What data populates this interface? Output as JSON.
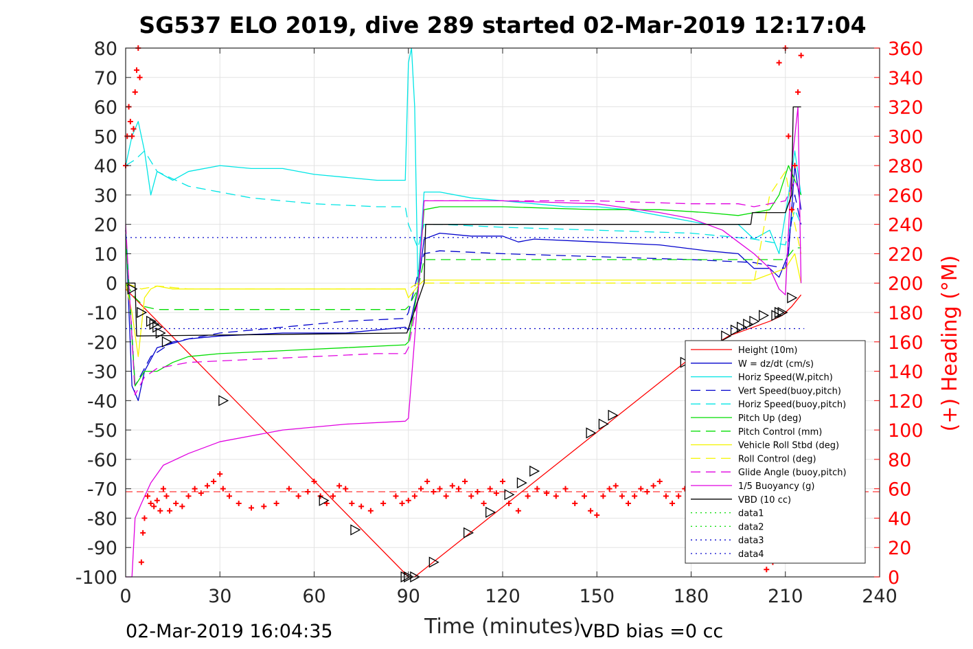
{
  "chart_data": {
    "type": "line",
    "title": "SG537 ELO 2019, dive 289 started 02-Mar-2019 12:17:04",
    "xlabel": "Time (minutes)",
    "ylabel": "",
    "y2label": "(+) Heading (°M)",
    "xlim": [
      0,
      240
    ],
    "ylim": [
      -100,
      80
    ],
    "y2lim": [
      0,
      360
    ],
    "xticks": [
      0,
      30,
      60,
      90,
      120,
      150,
      180,
      210,
      240
    ],
    "yticks": [
      -100,
      -90,
      -80,
      -70,
      -60,
      -50,
      -40,
      -30,
      -20,
      -10,
      0,
      10,
      20,
      30,
      40,
      50,
      60,
      70,
      80
    ],
    "y2ticks": [
      0,
      20,
      40,
      60,
      80,
      100,
      120,
      140,
      160,
      180,
      200,
      220,
      240,
      260,
      280,
      300,
      320,
      340,
      360
    ],
    "grid": true,
    "legend_position": "bottom-right",
    "footer_left": "02-Mar-2019 16:04:35",
    "footer_right": "VBD bias =0 cc",
    "colors": {
      "red": "#ff0000",
      "blue": "#0000cc",
      "cyan": "#00e5e5",
      "green": "#00dd00",
      "yellow": "#f5f500",
      "magenta": "#e000e0",
      "black": "#000000"
    },
    "series": [
      {
        "name": "Height (10m)",
        "color": "#ff0000",
        "dash": "",
        "x": [
          0,
          90,
          92,
          178,
          192,
          205,
          209,
          212,
          215
        ],
        "y": [
          -2,
          -100,
          -100,
          -27,
          -18,
          -13,
          -11,
          -8,
          -4
        ]
      },
      {
        "name": "W = dz/dt (cm/s)",
        "color": "#0000cc",
        "dash": "",
        "x": [
          0,
          2,
          4,
          6,
          10,
          20,
          30,
          50,
          70,
          89,
          90,
          93,
          95,
          100,
          110,
          120,
          125,
          130,
          150,
          170,
          185,
          195,
          200,
          205,
          208,
          211,
          213,
          215
        ],
        "y": [
          18,
          -35,
          -40,
          -30,
          -22,
          -19,
          -18,
          -17,
          -17,
          -15,
          -16,
          -2,
          15,
          17,
          16,
          16,
          14,
          15,
          14,
          13,
          11,
          10,
          5,
          5,
          2,
          10,
          40,
          25
        ]
      },
      {
        "name": "Horiz Speed(W,pitch)",
        "color": "#00e5e5",
        "dash": "",
        "x": [
          0,
          2,
          4,
          6,
          8,
          10,
          15,
          20,
          30,
          40,
          50,
          60,
          70,
          80,
          89,
          90,
          91,
          92,
          93,
          95,
          100,
          110,
          120,
          130,
          140,
          150,
          160,
          170,
          185,
          195,
          200,
          205,
          208,
          211,
          213,
          215
        ],
        "y": [
          40,
          50,
          55,
          45,
          30,
          38,
          35,
          38,
          40,
          39,
          39,
          37,
          36,
          35,
          35,
          75,
          80,
          60,
          0,
          31,
          31,
          29,
          28,
          27,
          26,
          26,
          25,
          23,
          20,
          20,
          15,
          18,
          10,
          30,
          45,
          30
        ]
      },
      {
        "name": "Vert Speed(buoy,pitch)",
        "color": "#0000cc",
        "dash": "14,8",
        "x": [
          0,
          3,
          8,
          15,
          30,
          50,
          70,
          89,
          90,
          93,
          95,
          100,
          120,
          150,
          180,
          200,
          205,
          210,
          213,
          215
        ],
        "y": [
          18,
          -35,
          -25,
          -20,
          -17,
          -15,
          -13,
          -12,
          -10,
          3,
          10,
          11,
          10,
          9,
          8,
          7,
          6,
          5,
          30,
          20
        ]
      },
      {
        "name": "Horiz Speed(buoy,pitch)",
        "color": "#00e5e5",
        "dash": "14,8",
        "x": [
          0,
          3,
          6,
          10,
          20,
          40,
          60,
          80,
          89,
          90,
          93,
          95,
          100,
          120,
          150,
          180,
          200,
          205,
          210,
          213,
          215
        ],
        "y": [
          40,
          42,
          45,
          38,
          33,
          29,
          27,
          26,
          26,
          20,
          12,
          20,
          20,
          19,
          18,
          17,
          15,
          14,
          13,
          25,
          20
        ]
      },
      {
        "name": "Pitch Up (deg)",
        "color": "#00dd00",
        "dash": "",
        "x": [
          0,
          3,
          6,
          10,
          15,
          20,
          30,
          50,
          70,
          89,
          90,
          93,
          95,
          100,
          120,
          150,
          170,
          185,
          195,
          200,
          205,
          208,
          211,
          213,
          215
        ],
        "y": [
          15,
          -35,
          -30,
          -30,
          -27,
          -25,
          -24,
          -23,
          -22,
          -21,
          -20,
          -2,
          25,
          26,
          26,
          25,
          25,
          24,
          23,
          24,
          25,
          30,
          40,
          35,
          30
        ]
      },
      {
        "name": "Pitch Control (mm)",
        "color": "#00dd00",
        "dash": "14,8",
        "x": [
          0,
          3,
          6,
          10,
          20,
          40,
          60,
          89,
          90,
          93,
          95,
          120,
          150,
          180,
          200,
          205,
          210,
          213,
          215
        ],
        "y": [
          0,
          -5,
          -8,
          -9,
          -9,
          -9,
          -9,
          -9,
          -8,
          -2,
          8,
          8,
          8,
          8,
          8,
          8,
          8,
          12,
          12
        ]
      },
      {
        "name": "Vehicle Roll Stbd (deg)",
        "color": "#f5f500",
        "dash": "",
        "x": [
          0,
          2,
          4,
          6,
          8,
          10,
          15,
          29,
          30,
          31,
          60,
          62,
          63,
          64,
          72,
          73,
          74,
          89,
          90,
          93,
          95,
          100,
          120,
          127,
          128,
          129,
          150,
          151,
          152,
          153,
          180,
          195,
          200,
          205,
          210,
          213,
          215
        ],
        "y": [
          0,
          -10,
          -25,
          -5,
          -2,
          -1,
          -2,
          -2,
          -2,
          -2,
          -2,
          -2,
          -2,
          -2,
          -2,
          -2,
          -2,
          -2,
          -5,
          -1,
          1,
          1,
          1,
          1,
          1,
          1,
          1,
          1,
          1,
          1,
          1,
          1,
          1,
          3,
          5,
          10,
          0
        ]
      },
      {
        "name": "Roll Control (deg)",
        "color": "#f5f500",
        "dash": "14,8",
        "x": [
          0,
          5,
          10,
          20,
          40,
          60,
          80,
          89,
          90,
          93,
          95,
          110,
          130,
          150,
          170,
          190,
          200,
          205,
          210,
          213,
          215
        ],
        "y": [
          0,
          -2,
          -1,
          -2,
          -2,
          -2,
          -2,
          -2,
          -2,
          0,
          0,
          0,
          0,
          0,
          0,
          0,
          0,
          30,
          38,
          20,
          10
        ]
      },
      {
        "name": "Glide Angle (buoy,pitch)",
        "color": "#e000e0",
        "dash": "14,8",
        "x": [
          0,
          3,
          6,
          10,
          20,
          40,
          60,
          80,
          89,
          90,
          93,
          95,
          100,
          120,
          150,
          180,
          195,
          200,
          205,
          210,
          213,
          215
        ],
        "y": [
          20,
          -38,
          -32,
          -29,
          -27,
          -26,
          -25,
          -24,
          -24,
          -22,
          -5,
          28,
          28,
          28,
          28,
          27,
          27,
          26,
          27,
          28,
          35,
          30
        ]
      },
      {
        "name": "1/5 Buoyancy (g)",
        "color": "#e000e0",
        "dash": "",
        "x": [
          0,
          2,
          3,
          5,
          8,
          12,
          20,
          30,
          50,
          70,
          89,
          90,
          93,
          95,
          100,
          120,
          150,
          170,
          180,
          190,
          195,
          200,
          205,
          208,
          210,
          212,
          214,
          215
        ],
        "y": [
          -100,
          -100,
          -80,
          -75,
          -68,
          -62,
          -58,
          -54,
          -50,
          -48,
          -47,
          -46,
          -5,
          28,
          28,
          28,
          27,
          24,
          22,
          18,
          14,
          10,
          5,
          -2,
          -4,
          40,
          60,
          0
        ]
      },
      {
        "name": "VBD (10 cc)",
        "color": "#000000",
        "dash": "",
        "x": [
          0,
          3,
          3.5,
          89,
          89.5,
          95,
          95.5,
          199,
          199.5,
          210,
          212,
          212.5,
          215
        ],
        "y": [
          0,
          0,
          -18,
          -17,
          -17,
          0,
          20,
          20,
          24,
          24,
          30,
          60,
          60
        ]
      },
      {
        "name": "data1",
        "color": "#00dd00",
        "dash": "2,5",
        "x": [],
        "y": []
      },
      {
        "name": "data2",
        "color": "#00dd00",
        "dash": "2,5",
        "x": [],
        "y": []
      },
      {
        "name": "data3",
        "color": "#0000cc",
        "dash": "2,5",
        "x": [
          0,
          216
        ],
        "y": [
          15.5,
          15.5
        ]
      },
      {
        "name": "data4",
        "color": "#0000cc",
        "dash": "2,5",
        "x": [
          0,
          216
        ],
        "y": [
          -15.5,
          -15.5
        ]
      }
    ],
    "heading": {
      "axis": "right",
      "marker": "+",
      "color": "#ff0000",
      "x": [
        0,
        0.5,
        1,
        1.5,
        2,
        2.5,
        3,
        3.5,
        4,
        4.5,
        5,
        5.5,
        6,
        7,
        8,
        9,
        10,
        11,
        12,
        13,
        14,
        16,
        18,
        20,
        22,
        24,
        26,
        28,
        30,
        31,
        33,
        36,
        40,
        44,
        48,
        52,
        55,
        58,
        60,
        62,
        64,
        66,
        68,
        70,
        72,
        75,
        78,
        82,
        86,
        88,
        90,
        92,
        94,
        96,
        98,
        100,
        102,
        104,
        106,
        108,
        110,
        112,
        114,
        116,
        118,
        120,
        122,
        125,
        128,
        131,
        134,
        137,
        140,
        143,
        146,
        148,
        150,
        152,
        154,
        156,
        158,
        160,
        162,
        164,
        166,
        168,
        170,
        172,
        174,
        176,
        178,
        180,
        182,
        184,
        186,
        188,
        190,
        192,
        194,
        196,
        198,
        200,
        202,
        204,
        206,
        208,
        210,
        211,
        212,
        213,
        214,
        215
      ],
      "y": [
        280,
        300,
        320,
        310,
        300,
        305,
        330,
        345,
        360,
        340,
        10,
        30,
        40,
        55,
        50,
        48,
        52,
        45,
        60,
        55,
        45,
        50,
        48,
        55,
        60,
        57,
        62,
        65,
        70,
        60,
        55,
        50,
        47,
        48,
        50,
        60,
        55,
        58,
        65,
        55,
        50,
        55,
        62,
        60,
        50,
        48,
        45,
        50,
        55,
        50,
        52,
        55,
        60,
        65,
        58,
        60,
        55,
        62,
        60,
        65,
        55,
        58,
        50,
        60,
        57,
        65,
        50,
        45,
        55,
        60,
        57,
        55,
        60,
        50,
        55,
        45,
        42,
        55,
        60,
        62,
        55,
        50,
        55,
        60,
        58,
        62,
        65,
        55,
        50,
        55,
        60,
        58,
        62,
        60,
        55,
        58,
        60,
        62,
        55,
        60,
        65,
        55,
        65,
        5,
        10,
        350,
        360,
        300,
        250,
        280,
        330,
        355
      ]
    },
    "heading_reference": {
      "value": 58,
      "color": "#ff0000",
      "dash": "10,6"
    },
    "height_markers": {
      "x": [
        2,
        5,
        8,
        9,
        10,
        11,
        13,
        31,
        63,
        73,
        89,
        90,
        92,
        98,
        109,
        116,
        122,
        126,
        130,
        148,
        152,
        155,
        178,
        191,
        194,
        196,
        198,
        200,
        203,
        207,
        208,
        209,
        212
      ],
      "y": [
        -2,
        -10,
        -13,
        -14,
        -15,
        -17,
        -20,
        -40,
        -74,
        -84,
        -100,
        -100,
        -100,
        -95,
        -85,
        -78,
        -72,
        -68,
        -64,
        -51,
        -48,
        -45,
        -27,
        -18,
        -16,
        -15,
        -14,
        -13,
        -11,
        -11,
        -10,
        -10,
        -5
      ]
    }
  }
}
